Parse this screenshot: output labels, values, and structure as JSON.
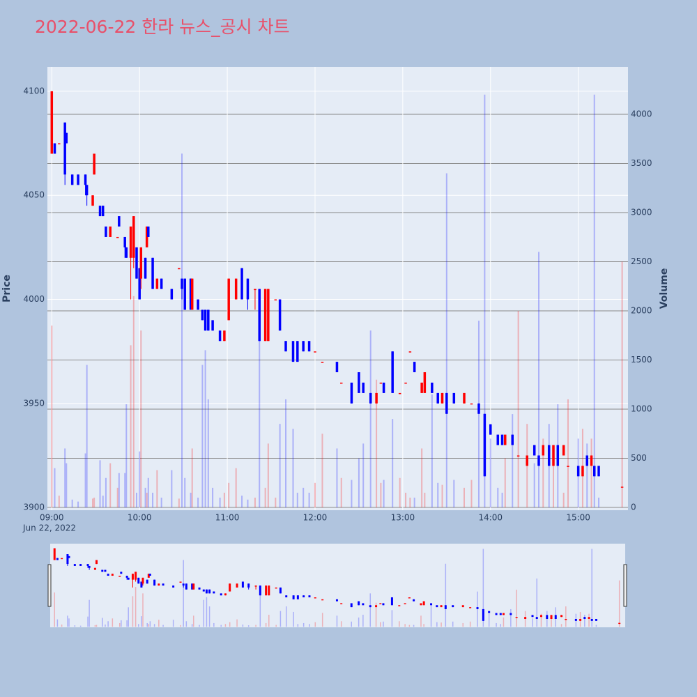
{
  "chart_data": {
    "type": "candlestick",
    "title": "2022-06-22 한라 뉴스_공시 차트",
    "y_label": "Price",
    "y2_label": "Volume",
    "x_date_label": "Jun 22, 2022",
    "increasing_color": "#ff0000",
    "decreasing_color": "#0000ff",
    "x": [
      "09:00",
      "09:02",
      "09:05",
      "09:09",
      "09:10",
      "09:14",
      "09:18",
      "09:23",
      "09:24",
      "09:28",
      "09:29",
      "09:33",
      "09:35",
      "09:37",
      "09:40",
      "09:45",
      "09:46",
      "09:50",
      "09:51",
      "09:54",
      "09:56",
      "09:58",
      "10:00",
      "10:01",
      "10:04",
      "10:05",
      "10:06",
      "10:09",
      "10:12",
      "10:15",
      "10:22",
      "10:27",
      "10:29",
      "10:31",
      "10:35",
      "10:36",
      "10:40",
      "10:43",
      "10:45",
      "10:47",
      "10:50",
      "10:55",
      "10:58",
      "11:01",
      "11:06",
      "11:10",
      "11:14",
      "11:19",
      "11:22",
      "11:26",
      "11:28",
      "11:33",
      "11:36",
      "11:40",
      "11:45",
      "11:48",
      "11:52",
      "11:56",
      "12:00",
      "12:05",
      "12:15",
      "12:18",
      "12:25",
      "12:30",
      "12:33",
      "12:38",
      "12:42",
      "12:45",
      "12:47",
      "12:53",
      "12:58",
      "13:02",
      "13:05",
      "13:08",
      "13:13",
      "13:15",
      "13:20",
      "13:24",
      "13:27",
      "13:30",
      "13:35",
      "13:42",
      "13:47",
      "13:52",
      "13:56",
      "14:00",
      "14:05",
      "14:08",
      "14:10",
      "14:15",
      "14:19",
      "14:25",
      "14:30",
      "14:33",
      "14:36",
      "14:40",
      "14:43",
      "14:46",
      "14:50",
      "14:53",
      "15:00",
      "15:03",
      "15:06",
      "15:09",
      "15:11",
      "15:14",
      "15:30"
    ],
    "open": [
      4070,
      4075,
      4075,
      4085,
      4080,
      4060,
      4060,
      4060,
      4055,
      4045,
      4060,
      4045,
      4045,
      4035,
      4030,
      4030,
      4040,
      4030,
      4025,
      4020,
      4020,
      4025,
      4015,
      4010,
      4020,
      4025,
      4035,
      4020,
      4005,
      4010,
      4005,
      4015,
      4010,
      4010,
      4010,
      3995,
      4000,
      3995,
      3995,
      3995,
      3990,
      3985,
      3980,
      3990,
      4000,
      4015,
      4010,
      4005,
      4005,
      3980,
      3980,
      4000,
      4000,
      3980,
      3980,
      3980,
      3980,
      3980,
      3975,
      3970,
      3970,
      3960,
      3960,
      3965,
      3960,
      3955,
      3950,
      3960,
      3960,
      3975,
      3955,
      3960,
      3975,
      3970,
      3955,
      3955,
      3960,
      3955,
      3950,
      3955,
      3955,
      3950,
      3950,
      3950,
      3945,
      3940,
      3935,
      3935,
      3930,
      3935,
      3925,
      3920,
      3930,
      3925,
      3925,
      3930,
      3920,
      3930,
      3925,
      3920,
      3920,
      3915,
      3925,
      3920,
      3920,
      3920,
      3910
    ],
    "high": [
      4100,
      4075,
      4075,
      4085,
      4080,
      4060,
      4060,
      4060,
      4055,
      4050,
      4070,
      4045,
      4045,
      4035,
      4035,
      4030,
      4040,
      4030,
      4025,
      4035,
      4040,
      4025,
      4015,
      4025,
      4020,
      4035,
      4035,
      4020,
      4010,
      4010,
      4005,
      4015,
      4010,
      4010,
      4010,
      4010,
      4000,
      3995,
      3995,
      3995,
      3990,
      3985,
      3985,
      4010,
      4010,
      4015,
      4010,
      4005,
      4005,
      4005,
      4005,
      4000,
      4000,
      3980,
      3980,
      3980,
      3980,
      3980,
      3975,
      3970,
      3970,
      3960,
      3960,
      3965,
      3960,
      3955,
      3955,
      3960,
      3960,
      3975,
      3955,
      3960,
      3975,
      3970,
      3960,
      3965,
      3960,
      3955,
      3955,
      3955,
      3955,
      3955,
      3950,
      3950,
      3945,
      3940,
      3935,
      3935,
      3935,
      3935,
      3925,
      3925,
      3930,
      3925,
      3930,
      3930,
      3930,
      3930,
      3930,
      3920,
      3920,
      3920,
      3925,
      3925,
      3920,
      3920,
      3910
    ],
    "low": [
      4070,
      4070,
      4075,
      4055,
      4075,
      4055,
      4055,
      4050,
      4045,
      4045,
      4060,
      4040,
      4040,
      4030,
      4030,
      4030,
      4035,
      4020,
      4020,
      4000,
      4015,
      4010,
      4000,
      4005,
      4010,
      4025,
      4030,
      4005,
      4005,
      4005,
      4000,
      4015,
      4000,
      3995,
      3995,
      3995,
      3995,
      3990,
      3985,
      3985,
      3985,
      3980,
      3980,
      3990,
      4000,
      4000,
      3995,
      3995,
      3980,
      3980,
      3980,
      4000,
      3985,
      3975,
      3970,
      3970,
      3975,
      3975,
      3975,
      3970,
      3965,
      3960,
      3950,
      3955,
      3955,
      3950,
      3950,
      3960,
      3955,
      3955,
      3955,
      3960,
      3975,
      3965,
      3955,
      3955,
      3955,
      3950,
      3950,
      3945,
      3950,
      3950,
      3950,
      3945,
      3915,
      3935,
      3930,
      3930,
      3930,
      3930,
      3925,
      3920,
      3925,
      3920,
      3925,
      3920,
      3920,
      3920,
      3925,
      3920,
      3915,
      3915,
      3920,
      3920,
      3915,
      3915,
      3910
    ],
    "close": [
      4100,
      4070,
      4075,
      4060,
      4075,
      4055,
      4055,
      4055,
      4050,
      4050,
      4070,
      4040,
      4040,
      4030,
      4035,
      4030,
      4035,
      4025,
      4020,
      4035,
      4040,
      4010,
      4000,
      4025,
      4010,
      4035,
      4030,
      4005,
      4010,
      4005,
      4000,
      4015,
      4005,
      3995,
      3995,
      4010,
      3995,
      3990,
      3985,
      3985,
      3985,
      3980,
      3985,
      4010,
      4010,
      4000,
      4000,
      4005,
      3980,
      4005,
      4005,
      4000,
      3985,
      3975,
      3970,
      3970,
      3975,
      3975,
      3975,
      3970,
      3965,
      3960,
      3950,
      3955,
      3955,
      3950,
      3955,
      3960,
      3955,
      3955,
      3955,
      3960,
      3975,
      3965,
      3960,
      3965,
      3955,
      3950,
      3955,
      3945,
      3950,
      3955,
      3950,
      3945,
      3915,
      3935,
      3930,
      3930,
      3935,
      3930,
      3925,
      3925,
      3925,
      3920,
      3930,
      3920,
      3930,
      3920,
      3930,
      3920,
      3915,
      3920,
      3920,
      3925,
      3915,
      3915,
      3910
    ],
    "volume": [
      1850,
      400,
      120,
      600,
      450,
      80,
      60,
      550,
      1450,
      90,
      100,
      480,
      120,
      300,
      450,
      200,
      350,
      350,
      1050,
      1650,
      2150,
      150,
      570,
      1800,
      200,
      150,
      300,
      150,
      380,
      100,
      380,
      90,
      3600,
      300,
      150,
      600,
      100,
      1450,
      1600,
      1100,
      200,
      100,
      150,
      250,
      400,
      120,
      80,
      100,
      1750,
      200,
      650,
      100,
      850,
      1100,
      800,
      150,
      200,
      150,
      250,
      750,
      600,
      300,
      280,
      500,
      650,
      1800,
      1300,
      250,
      280,
      900,
      300,
      150,
      100,
      100,
      600,
      150,
      1150,
      250,
      230,
      3400,
      280,
      200,
      280,
      1900,
      4200,
      700,
      200,
      150,
      500,
      950,
      2000,
      850,
      450,
      2600,
      700,
      850,
      550,
      1050,
      150,
      1100,
      700,
      800,
      650,
      700,
      4200,
      100,
      2500
    ],
    "xlim": [
      "08:57",
      "15:34"
    ],
    "xticks": [
      "09:00",
      "10:00",
      "11:00",
      "12:00",
      "13:00",
      "14:00",
      "15:00"
    ],
    "ylim": [
      3898.7,
      4111.7
    ],
    "yticks": [
      3900,
      3950,
      4000,
      4050,
      4100
    ],
    "y2lim": [
      -28,
      4482
    ],
    "y2ticks": [
      0,
      500,
      1000,
      1500,
      2000,
      2500,
      3000,
      3500,
      4000
    ],
    "grid": true,
    "rangeslider": true
  }
}
